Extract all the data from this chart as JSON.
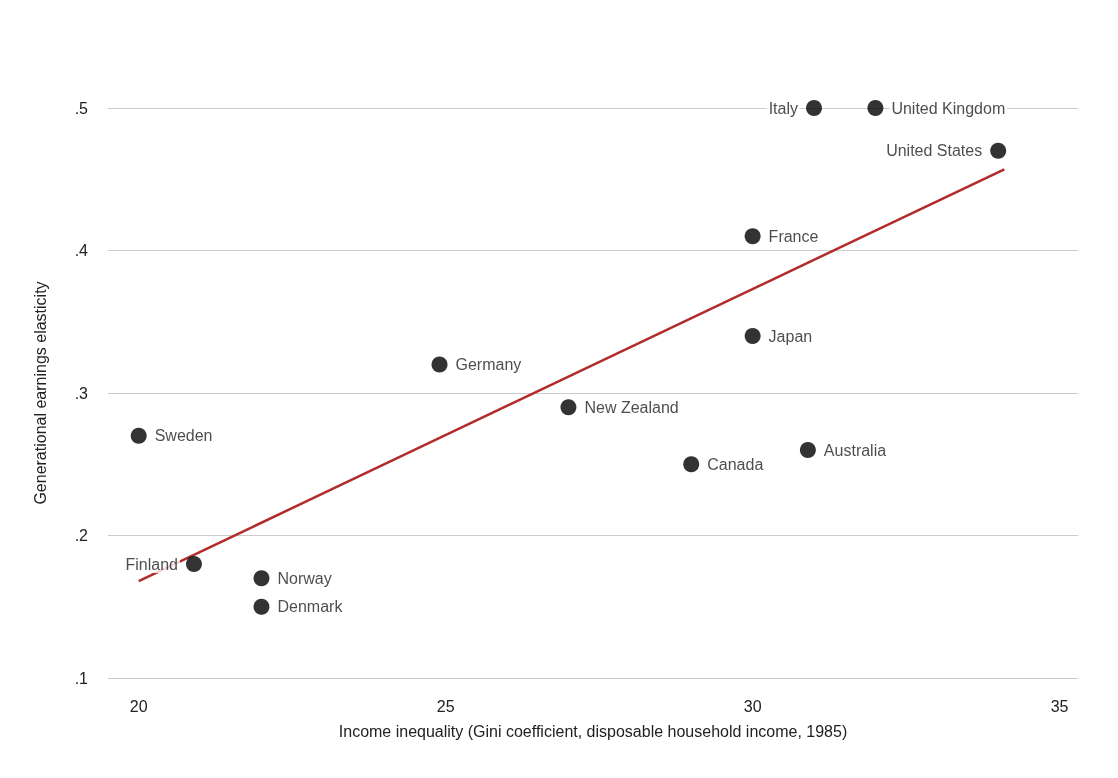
{
  "chart_data": {
    "type": "scatter",
    "xlabel": "Income inequality (Gini coefficient, disposable household income, 1985)",
    "ylabel": "Generational earnings elasticity",
    "xlim": [
      19.5,
      35.3
    ],
    "ylim": [
      0.1,
      0.5
    ],
    "xticks": [
      20,
      25,
      30,
      35
    ],
    "yticks": [
      {
        "value": 0.1,
        "label": ".1"
      },
      {
        "value": 0.2,
        "label": ".2"
      },
      {
        "value": 0.3,
        "label": ".3"
      },
      {
        "value": 0.4,
        "label": ".4"
      },
      {
        "value": 0.5,
        "label": ".5"
      }
    ],
    "grid": "y",
    "marker": "circle",
    "series": [
      {
        "color": "#000000",
        "x": [
          20,
          20.9,
          22,
          22,
          24.9,
          27,
          29,
          30,
          30,
          30.9,
          31,
          32,
          34
        ],
        "values": [
          0.27,
          0.18,
          0.17,
          0.15,
          0.32,
          0.29,
          0.25,
          0.34,
          0.41,
          0.26,
          0.5,
          0.5,
          0.47
        ]
      },
      {
        "type": "line",
        "marker": "none",
        "color": "#b22b2b",
        "x": [
          20,
          34.1
        ],
        "values": [
          0.168,
          0.457
        ]
      }
    ],
    "annotations": [
      {
        "text": "Sweden",
        "x": 20,
        "y": 0.27
      },
      {
        "text": "Finland",
        "x": 20.9,
        "y": 0.18
      },
      {
        "text": "Norway",
        "x": 22,
        "y": 0.17
      },
      {
        "text": "Denmark",
        "x": 22,
        "y": 0.15
      },
      {
        "text": "Germany",
        "x": 24.9,
        "y": 0.32
      },
      {
        "text": "New Zealand",
        "x": 27,
        "y": 0.29
      },
      {
        "text": "Canada",
        "x": 29,
        "y": 0.25
      },
      {
        "text": "Japan",
        "x": 30,
        "y": 0.34
      },
      {
        "text": "France",
        "x": 30,
        "y": 0.41
      },
      {
        "text": "Australia",
        "x": 30.9,
        "y": 0.26
      },
      {
        "text": "Italy",
        "x": 31,
        "y": 0.5
      },
      {
        "text": "United Kingdom",
        "x": 32,
        "y": 0.5
      },
      {
        "text": "United States",
        "x": 34,
        "y": 0.47
      }
    ]
  }
}
